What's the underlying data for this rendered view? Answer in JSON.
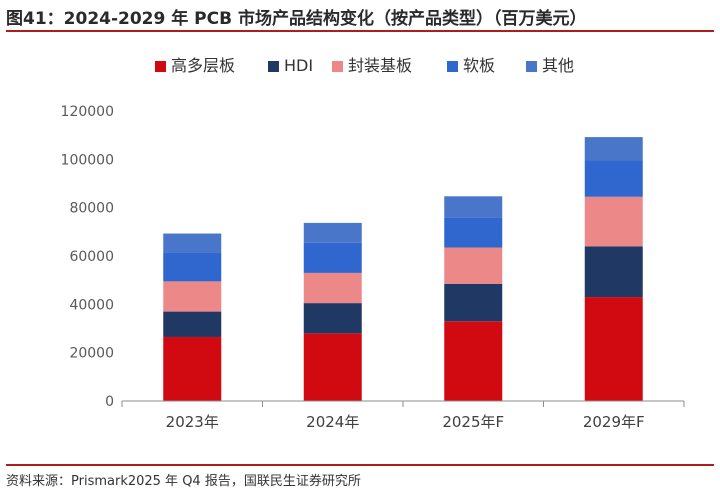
{
  "figure": {
    "title": "图41：2024-2029 年 PCB 市场产品结构变化（按产品类型）（百万美元）",
    "source": "资料来源：Prismark2025 年 Q4 报告，国联民生证券研究所"
  },
  "chart_data": {
    "type": "bar",
    "stacked": true,
    "categories": [
      "2023年",
      "2024年",
      "2025年F",
      "2029年F"
    ],
    "series": [
      {
        "name": "高多层板",
        "color": "#d10a12",
        "values": [
          26500,
          28000,
          33000,
          43000
        ]
      },
      {
        "name": "HDI",
        "color": "#1f3864",
        "values": [
          10500,
          12500,
          15500,
          21000
        ]
      },
      {
        "name": "封装基板",
        "color": "#ed8888",
        "values": [
          12500,
          12500,
          15000,
          20500
        ]
      },
      {
        "name": "软板",
        "color": "#2f67cf",
        "values": [
          12000,
          12500,
          12500,
          15000
        ]
      },
      {
        "name": "其他",
        "color": "#4a76c9",
        "values": [
          7800,
          8200,
          8700,
          9700
        ]
      }
    ],
    "ylim": [
      0,
      120000
    ],
    "yticks": [
      0,
      20000,
      40000,
      60000,
      80000,
      100000,
      120000
    ],
    "xlabel": "",
    "ylabel": "",
    "legend": "top",
    "grid": false
  }
}
